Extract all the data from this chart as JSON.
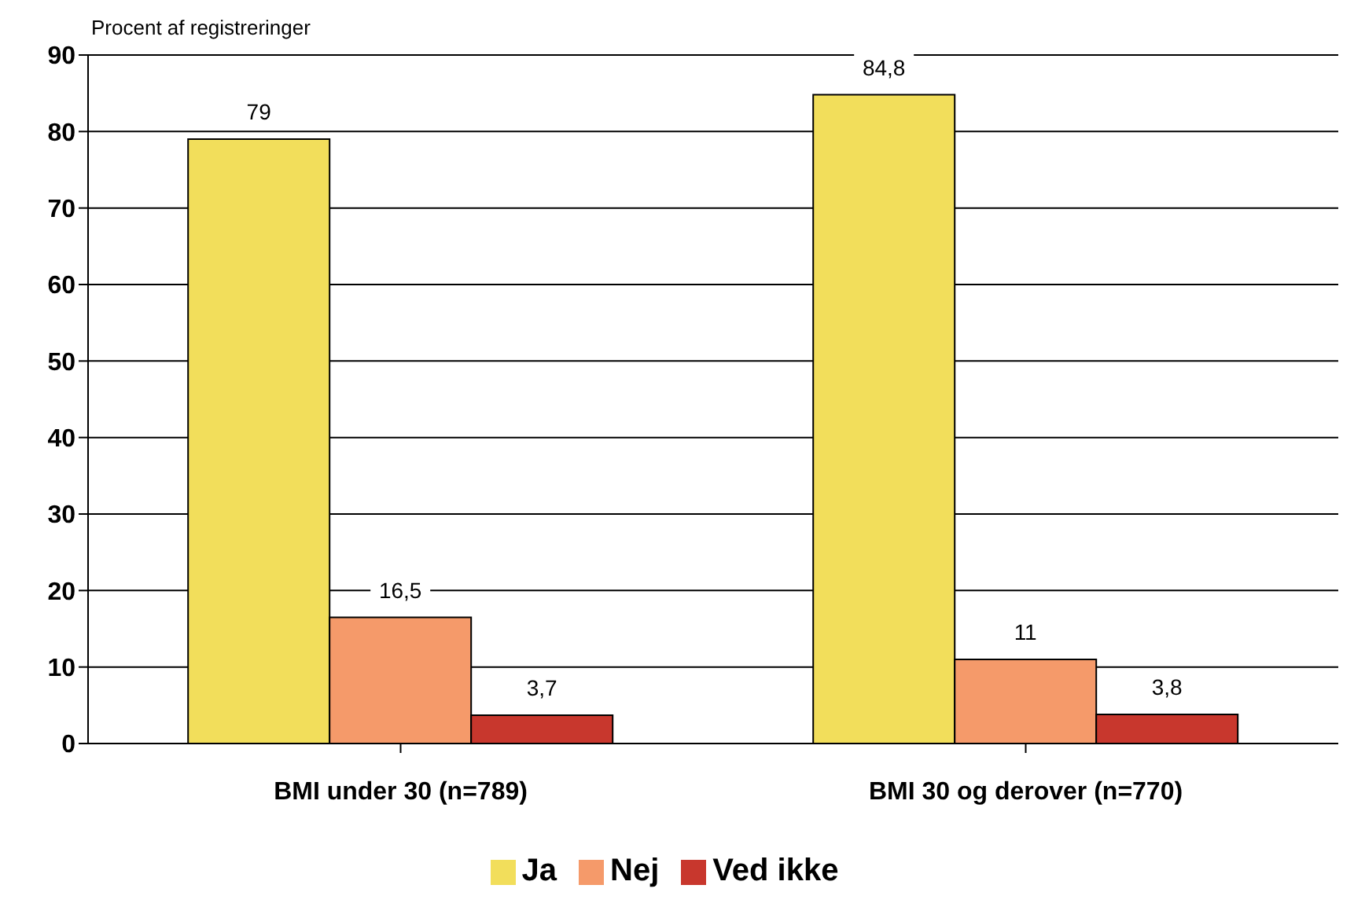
{
  "chart_data": {
    "type": "bar",
    "ylabel": "Procent af registreringer",
    "categories": [
      "BMI under 30 (n=789)",
      "BMI 30 og derover (n=770)"
    ],
    "series": [
      {
        "name": "Ja",
        "color": "#f2de5b",
        "values": [
          79,
          84.8
        ],
        "value_labels": [
          "79",
          "84,8"
        ]
      },
      {
        "name": "Nej",
        "color": "#f59a6a",
        "values": [
          16.5,
          11
        ],
        "value_labels": [
          "16,5",
          "11"
        ]
      },
      {
        "name": "Ved ikke",
        "color": "#c8372d",
        "values": [
          3.7,
          3.8
        ],
        "value_labels": [
          "3,7",
          "3,8"
        ]
      }
    ],
    "ylim": [
      0,
      90
    ],
    "yticks": [
      0,
      10,
      20,
      30,
      40,
      50,
      60,
      70,
      80,
      90
    ],
    "grid": "y",
    "legend": "bottom"
  }
}
